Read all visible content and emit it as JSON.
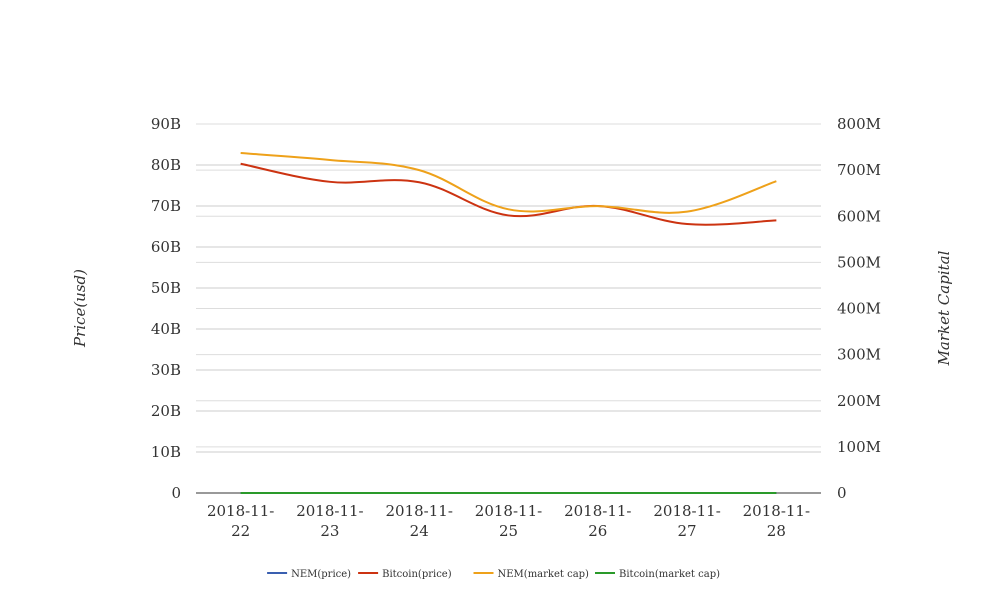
{
  "chart_data": {
    "type": "line",
    "categories": [
      "2018-11-22",
      "2018-11-23",
      "2018-11-24",
      "2018-11-25",
      "2018-11-26",
      "2018-11-27",
      "2018-11-28"
    ],
    "x_tick_labels": [
      [
        "2018-11-",
        "22"
      ],
      [
        "2018-11-",
        "23"
      ],
      [
        "2018-11-",
        "24"
      ],
      [
        "2018-11-",
        "25"
      ],
      [
        "2018-11-",
        "26"
      ],
      [
        "2018-11-",
        "27"
      ],
      [
        "2018-11-",
        "28"
      ]
    ],
    "ylabel_left": "Price(usd)",
    "ylabel_right": "Market Capital",
    "ylim_left": [
      0,
      90000000000
    ],
    "ylim_right": [
      0,
      800000000
    ],
    "left_ticks": [
      "0",
      "10B",
      "20B",
      "30B",
      "40B",
      "50B",
      "60B",
      "70B",
      "80B",
      "90B"
    ],
    "right_ticks": [
      "0",
      "100M",
      "200M",
      "300M",
      "400M",
      "500M",
      "600M",
      "700M",
      "800M"
    ],
    "grid": true,
    "legend_position": "bottom",
    "series": [
      {
        "name": "NEM(price)",
        "axis": "left",
        "color": "#3a5fb0",
        "values": [
          0.09,
          0.09,
          0.08,
          0.07,
          0.07,
          0.07,
          0.08
        ]
      },
      {
        "name": "Bitcoin(price)",
        "axis": "left",
        "color": "#cc3311",
        "values": [
          80300000000,
          75900000000,
          75800000000,
          67700000000,
          70000000000,
          65600000000,
          66500000000
        ]
      },
      {
        "name": "NEM(market cap)",
        "axis": "right",
        "color": "#eea11a",
        "values": [
          737000000,
          722000000,
          700000000,
          615000000,
          622000000,
          610000000,
          676000000
        ]
      },
      {
        "name": "Bitcoin(market cap)",
        "axis": "right",
        "color": "#2a9a2a",
        "values": [
          0,
          0,
          0,
          0,
          0,
          0,
          0
        ]
      }
    ]
  }
}
